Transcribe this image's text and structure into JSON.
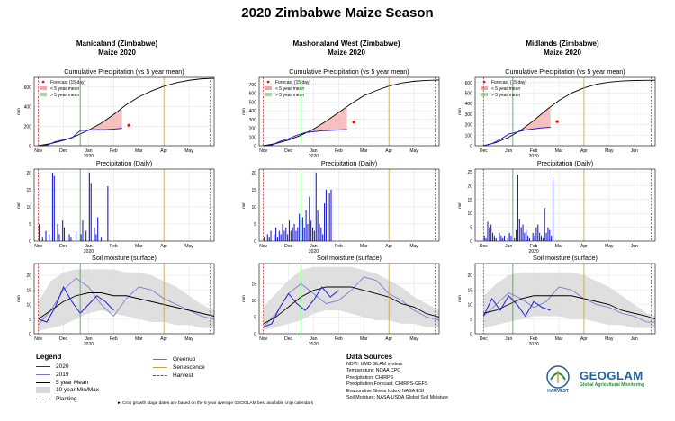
{
  "title": "2020 Zimbabwe Maize Season",
  "colors": {
    "current": "#1f1fd6",
    "prior": "#7b6fd1",
    "mean": "#000000",
    "minmax": "#d9d9d9",
    "greenup": "#33aa33",
    "senescence": "#c8a23a",
    "harvest": "#d62728",
    "planting": "#d62728",
    "below": "#f4a6a6",
    "above": "#a8d8a8",
    "forecast_pt": "#ff0000"
  },
  "regions": [
    {
      "name": "Manicaland (Zimbabwe)",
      "crop": "Maize 2020",
      "months": [
        "Nov",
        "Dec",
        "Jan",
        "Feb",
        "Mar",
        "Apr",
        "May"
      ],
      "year_label": "2020",
      "planting_day": 0,
      "greenup_day": 50,
      "senescence_day": 150,
      "harvest_day": 205,
      "xmin": -5,
      "xmax": 210,
      "chart_data": [
        {
          "type": "line",
          "title": "Cumulative Precipitation (vs 5 year mean)",
          "ylabel": "mm",
          "ylim": [
            0,
            700
          ],
          "yticks": [
            0,
            200,
            400,
            600
          ],
          "legend": [
            "Forecast (15 day)",
            "< 5 year mean",
            "> 5 year mean"
          ],
          "mean_x": [
            0,
            15,
            30,
            45,
            60,
            75,
            90,
            105,
            120,
            135,
            150,
            165,
            180,
            195,
            210
          ],
          "mean_y": [
            0,
            22,
            55,
            100,
            160,
            230,
            320,
            420,
            500,
            560,
            610,
            645,
            670,
            685,
            690
          ],
          "current_x": [
            0,
            10,
            20,
            30,
            40,
            50,
            60,
            70,
            80,
            90,
            100
          ],
          "current_y": [
            0,
            5,
            40,
            60,
            80,
            155,
            160,
            165,
            165,
            170,
            178
          ],
          "forecast": {
            "x": 108,
            "y": 210
          }
        },
        {
          "type": "bar",
          "title": "Precipitation (Daily)",
          "ylabel": "mm",
          "ylim": [
            0,
            21
          ],
          "yticks": [
            0,
            5,
            10,
            15,
            20
          ],
          "x": [
            1,
            3,
            5,
            7,
            9,
            11,
            13,
            15,
            17,
            19,
            21,
            23,
            25,
            27,
            29,
            31,
            33,
            35,
            37,
            39,
            41,
            43,
            45,
            47,
            49,
            51,
            53,
            55,
            57,
            59,
            61,
            63,
            65,
            67,
            69,
            71,
            73,
            75,
            77,
            79,
            81,
            83
          ],
          "values": [
            5,
            0,
            1,
            0,
            3,
            0,
            2,
            0,
            20,
            19,
            0,
            5,
            2,
            0,
            6,
            4,
            0,
            0,
            2,
            1,
            0,
            0,
            3,
            0,
            0,
            2,
            6,
            0,
            3,
            0,
            20,
            17,
            0,
            4,
            2,
            7,
            0,
            1,
            0,
            0,
            0,
            16
          ]
        },
        {
          "type": "line",
          "title": "Soil moisture (surface)",
          "ylabel": "mm",
          "ylim": [
            0,
            24
          ],
          "yticks": [
            0,
            5,
            10,
            15,
            20
          ],
          "x": [
            0,
            15,
            30,
            45,
            60,
            75,
            90,
            105,
            120,
            135,
            150,
            165,
            180,
            195,
            210
          ],
          "mean": [
            5,
            8,
            11,
            13,
            14,
            14,
            13,
            13,
            12,
            11,
            10,
            9,
            8,
            7,
            6
          ],
          "min": [
            1,
            2,
            3,
            5,
            7,
            8,
            7,
            6,
            5,
            4,
            4,
            3,
            3,
            2,
            2
          ],
          "max": [
            11,
            18,
            21,
            22,
            22,
            22,
            22,
            21,
            21,
            20,
            18,
            16,
            13,
            10,
            8
          ],
          "s2019": [
            3,
            8,
            15,
            19,
            16,
            10,
            6,
            12,
            16,
            15,
            12,
            10,
            8,
            6,
            5
          ],
          "s2020_x": [
            0,
            10,
            20,
            30,
            40,
            50,
            60,
            70,
            80,
            90
          ],
          "s2020": [
            5,
            4,
            9,
            16,
            11,
            7,
            10,
            13,
            11,
            8
          ]
        }
      ]
    },
    {
      "name": "Mashonaland West (Zimbabwe)",
      "crop": "Maize 2020",
      "months": [
        "Nov",
        "Dec",
        "Jan",
        "Feb",
        "Mar",
        "Apr",
        "May"
      ],
      "year_label": "2020",
      "planting_day": 0,
      "greenup_day": 45,
      "senescence_day": 150,
      "harvest_day": 205,
      "xmin": -5,
      "xmax": 210,
      "chart_data": [
        {
          "type": "line",
          "title": "Cumulative Precipitation (vs 5 year mean)",
          "ylabel": "mm",
          "ylim": [
            0,
            780
          ],
          "yticks": [
            0,
            100,
            200,
            300,
            400,
            500,
            600,
            700
          ],
          "legend": [
            "Forecast (15 day)",
            "< 5 year mean",
            "> 5 year mean"
          ],
          "mean_x": [
            0,
            15,
            30,
            45,
            60,
            75,
            90,
            105,
            120,
            135,
            150,
            165,
            180,
            195,
            210
          ],
          "mean_y": [
            0,
            25,
            65,
            120,
            190,
            280,
            380,
            480,
            570,
            630,
            680,
            715,
            735,
            745,
            750
          ],
          "current_x": [
            0,
            10,
            20,
            30,
            40,
            50,
            60,
            70,
            80,
            90,
            100
          ],
          "current_y": [
            0,
            8,
            50,
            80,
            120,
            150,
            160,
            170,
            175,
            180,
            185
          ],
          "forecast": {
            "x": 108,
            "y": 270
          }
        },
        {
          "type": "bar",
          "title": "Precipitation (Daily)",
          "ylabel": "mm",
          "ylim": [
            0,
            21
          ],
          "yticks": [
            0,
            5,
            10,
            15,
            20
          ],
          "x": [
            1,
            3,
            5,
            7,
            9,
            11,
            13,
            15,
            17,
            19,
            21,
            23,
            25,
            27,
            29,
            31,
            33,
            35,
            37,
            39,
            41,
            43,
            45,
            47,
            49,
            51,
            53,
            55,
            57,
            59,
            61,
            63,
            65,
            67,
            69,
            71,
            73,
            75,
            77,
            79,
            81,
            83
          ],
          "values": [
            1,
            0,
            2,
            1,
            3,
            0,
            2,
            4,
            1,
            3,
            2,
            5,
            3,
            4,
            2,
            6,
            3,
            4,
            5,
            3,
            4,
            8,
            6,
            7,
            4,
            9,
            5,
            13,
            6,
            4,
            3,
            20,
            9,
            5,
            4,
            2,
            11,
            15,
            0,
            14,
            15,
            0
          ]
        },
        {
          "type": "line",
          "title": "Soil moisture (surface)",
          "ylabel": "mm",
          "ylim": [
            0,
            21
          ],
          "yticks": [
            0,
            5,
            10,
            15
          ],
          "x": [
            0,
            15,
            30,
            45,
            60,
            75,
            90,
            105,
            120,
            135,
            150,
            165,
            180,
            195,
            210
          ],
          "mean": [
            3,
            5,
            8,
            11,
            13,
            14,
            14,
            14,
            13,
            12,
            11,
            9,
            8,
            6,
            5
          ],
          "min": [
            1,
            2,
            3,
            4,
            6,
            7,
            7,
            6,
            5,
            4,
            4,
            3,
            3,
            2,
            2
          ],
          "max": [
            8,
            12,
            16,
            19,
            20,
            20,
            20,
            20,
            19,
            18,
            16,
            14,
            11,
            9,
            7
          ],
          "s2019": [
            2,
            6,
            12,
            15,
            12,
            9,
            10,
            13,
            17,
            16,
            12,
            10,
            7,
            5,
            4
          ],
          "s2020_x": [
            0,
            10,
            20,
            30,
            40,
            50,
            60,
            70,
            80,
            90
          ],
          "s2020": [
            2,
            3,
            8,
            12,
            9,
            7,
            10,
            14,
            11,
            13
          ]
        }
      ]
    },
    {
      "name": "Midlands (Zimbabwe)",
      "crop": "Maize 2020",
      "months": [
        "Dec",
        "Jan",
        "Feb",
        "Mar",
        "Apr",
        "May",
        "Jun"
      ],
      "year_label": "2020",
      "planting_day": 0,
      "greenup_day": 35,
      "senescence_day": 120,
      "harvest_day": 200,
      "xmin": -10,
      "xmax": 205,
      "chart_data": [
        {
          "type": "line",
          "title": "Cumulative Precipitation (vs 5 year mean)",
          "ylabel": "mm",
          "ylim": [
            0,
            650
          ],
          "yticks": [
            0,
            100,
            200,
            300,
            400,
            500,
            600
          ],
          "legend": [
            "Forecast (15 day)",
            "< 5 year mean",
            "> 5 year mean"
          ],
          "mean_x": [
            0,
            15,
            30,
            45,
            60,
            75,
            90,
            105,
            120,
            135,
            150,
            165,
            180,
            195,
            205
          ],
          "mean_y": [
            0,
            30,
            80,
            150,
            240,
            340,
            430,
            500,
            550,
            585,
            605,
            615,
            620,
            622,
            623
          ],
          "current_x": [
            0,
            10,
            20,
            30,
            40,
            50,
            60,
            70,
            80
          ],
          "current_y": [
            0,
            20,
            60,
            110,
            130,
            150,
            160,
            170,
            175
          ],
          "forecast": {
            "x": 88,
            "y": 230
          }
        },
        {
          "type": "bar",
          "title": "Precipitation (Daily)",
          "ylabel": "mm",
          "ylim": [
            0,
            26
          ],
          "yticks": [
            0,
            5,
            10,
            15,
            20,
            25
          ],
          "x": [
            1,
            3,
            5,
            7,
            9,
            11,
            13,
            15,
            17,
            19,
            21,
            23,
            25,
            27,
            29,
            31,
            33,
            35,
            37,
            39,
            41,
            43,
            45,
            47,
            49,
            51,
            53,
            55,
            57,
            59,
            61,
            63,
            65,
            67,
            69,
            71,
            73,
            75,
            77,
            79,
            81,
            83
          ],
          "values": [
            2,
            1,
            7,
            5,
            6,
            3,
            2,
            1,
            0,
            3,
            2,
            1,
            2,
            0,
            1,
            3,
            2,
            0,
            1,
            4,
            24,
            8,
            5,
            6,
            3,
            4,
            2,
            1,
            0,
            3,
            2,
            5,
            6,
            3,
            2,
            1,
            12,
            3,
            5,
            4,
            2,
            23
          ]
        },
        {
          "type": "line",
          "title": "Soil moisture (surface)",
          "ylabel": "mm",
          "ylim": [
            0,
            24
          ],
          "yticks": [
            0,
            5,
            10,
            15,
            20
          ],
          "x": [
            0,
            15,
            30,
            45,
            60,
            75,
            90,
            105,
            120,
            135,
            150,
            165,
            180,
            195,
            205
          ],
          "mean": [
            7,
            8,
            10,
            12,
            13,
            13,
            13,
            13,
            12,
            11,
            10,
            8,
            7,
            6,
            5
          ],
          "min": [
            2,
            3,
            4,
            5,
            6,
            6,
            6,
            5,
            5,
            4,
            3,
            3,
            2,
            2,
            2
          ],
          "max": [
            13,
            17,
            20,
            21,
            21,
            21,
            21,
            21,
            20,
            18,
            16,
            13,
            10,
            7,
            6
          ],
          "s2019": [
            6,
            10,
            14,
            12,
            9,
            11,
            16,
            15,
            12,
            10,
            9,
            7,
            6,
            4,
            4
          ],
          "s2020_x": [
            0,
            10,
            20,
            30,
            40,
            50,
            60,
            70,
            80
          ],
          "s2020": [
            6,
            12,
            8,
            13,
            10,
            6,
            11,
            9,
            8
          ]
        }
      ]
    }
  ],
  "legend": {
    "heading": "Legend",
    "items": [
      "2020",
      "2019",
      "5 year Mean",
      "10 year Min/Max",
      "Planting",
      "Greenup",
      "Senescence",
      "Harvest"
    ],
    "footnote": "► Crop growth stage dates are based on the 5 year average GEOGLAM best available crop calendars"
  },
  "sources": {
    "heading": "Data Sources",
    "lines": [
      "NDVI: UMD GLAM system",
      "Temperature: NOAA CPC",
      "Precipitation: CHIRPS",
      "Precipitation Forecast: CHIRPS-GEFS",
      "Evaporative Stress Index: NASA ESI",
      "Soil Moisture: NASA-USDA Global Soil Moisture"
    ]
  },
  "logos": {
    "harvest": "HARVEST",
    "geoglam": "GEOGLAM",
    "geoglam_tagline": "Global Agricultural Monitoring"
  }
}
